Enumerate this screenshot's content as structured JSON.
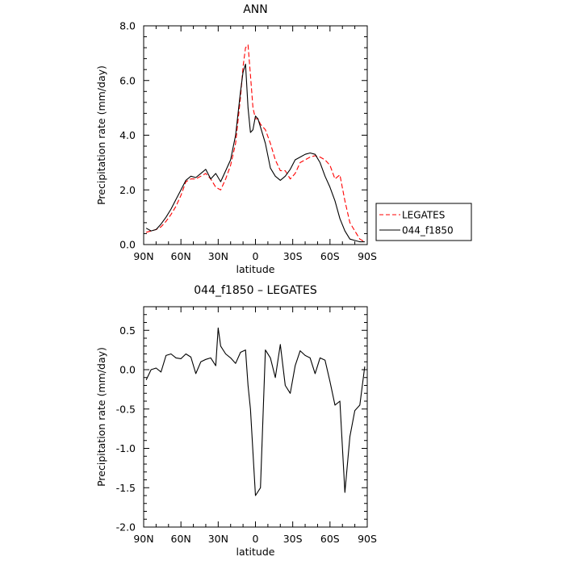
{
  "chart_data": [
    {
      "type": "line",
      "title": "ANN",
      "xlabel": "latitude",
      "ylabel": "Precipitation rate (mm/day)",
      "xlim": [
        90,
        -90
      ],
      "ylim": [
        0.0,
        8.0
      ],
      "x_ticks": [
        90,
        60,
        30,
        0,
        -30,
        -60,
        -90
      ],
      "x_tick_labels": [
        "90N",
        "60N",
        "30N",
        "0",
        "30S",
        "60S",
        "90S"
      ],
      "y_ticks": [
        0.0,
        2.0,
        4.0,
        6.0,
        8.0
      ],
      "y_tick_labels": [
        "0.0",
        "2.0",
        "4.0",
        "6.0",
        "8.0"
      ],
      "legend": "right",
      "grid": false,
      "series": [
        {
          "name": "LEGATES",
          "color": "#ff0000",
          "dash": "dashed",
          "x": [
            88,
            84,
            80,
            76,
            72,
            68,
            64,
            60,
            56,
            52,
            48,
            44,
            40,
            36,
            32,
            28,
            24,
            20,
            16,
            12,
            10,
            8,
            6,
            4,
            2,
            0,
            -2,
            -4,
            -8,
            -12,
            -16,
            -20,
            -24,
            -28,
            -32,
            -36,
            -40,
            -44,
            -48,
            -52,
            -56,
            -60,
            -64,
            -68,
            -72,
            -76,
            -80,
            -84,
            -88
          ],
          "y": [
            0.45,
            0.5,
            0.55,
            0.65,
            0.85,
            1.1,
            1.4,
            1.8,
            2.3,
            2.4,
            2.4,
            2.5,
            2.6,
            2.4,
            2.1,
            2.0,
            2.4,
            2.9,
            3.7,
            5.4,
            6.5,
            7.2,
            7.3,
            6.2,
            5.0,
            4.6,
            4.6,
            4.4,
            4.2,
            3.7,
            3.1,
            2.7,
            2.7,
            2.4,
            2.6,
            3.0,
            3.1,
            3.2,
            3.25,
            3.2,
            3.1,
            2.9,
            2.4,
            2.55,
            1.6,
            0.8,
            0.5,
            0.2,
            0.1
          ]
        },
        {
          "name": "044_f1850",
          "color": "#000000",
          "dash": "solid",
          "x": [
            88,
            84,
            80,
            76,
            72,
            68,
            64,
            60,
            56,
            52,
            48,
            44,
            40,
            36,
            32,
            28,
            24,
            20,
            16,
            12,
            10,
            8,
            6,
            4,
            2,
            0,
            -2,
            -4,
            -8,
            -12,
            -16,
            -20,
            -24,
            -28,
            -32,
            -36,
            -40,
            -44,
            -48,
            -52,
            -56,
            -60,
            -64,
            -68,
            -72,
            -76,
            -80,
            -84,
            -88
          ],
          "y": [
            0.6,
            0.5,
            0.55,
            0.75,
            1.0,
            1.3,
            1.65,
            2.0,
            2.35,
            2.5,
            2.45,
            2.6,
            2.75,
            2.4,
            2.6,
            2.3,
            2.7,
            3.1,
            4.0,
            5.6,
            6.3,
            6.6,
            5.0,
            4.1,
            4.2,
            4.7,
            4.6,
            4.3,
            3.7,
            2.8,
            2.5,
            2.35,
            2.5,
            2.75,
            3.1,
            3.2,
            3.3,
            3.35,
            3.3,
            3.0,
            2.5,
            2.1,
            1.6,
            0.95,
            0.5,
            0.2,
            0.15,
            0.1,
            0.1
          ]
        }
      ]
    },
    {
      "type": "line",
      "title": "044_f1850 – LEGATES",
      "xlabel": "latitude",
      "ylabel": "Precipitation rate (mm/day)",
      "xlim": [
        90,
        -90
      ],
      "ylim": [
        -2.0,
        0.8
      ],
      "x_ticks": [
        90,
        60,
        30,
        0,
        -30,
        -60,
        -90
      ],
      "x_tick_labels": [
        "90N",
        "60N",
        "30N",
        "0",
        "30S",
        "60S",
        "90S"
      ],
      "y_ticks": [
        -2.0,
        -1.5,
        -1.0,
        -0.5,
        0.0,
        0.5
      ],
      "y_tick_labels": [
        "-2.0",
        "-1.5",
        "-1.0",
        "-0.5",
        "0.0",
        "0.5"
      ],
      "grid": false,
      "series": [
        {
          "color": "#000000",
          "dash": "solid",
          "x": [
            88,
            84,
            80,
            76,
            72,
            68,
            64,
            60,
            56,
            52,
            48,
            44,
            40,
            36,
            32,
            30,
            28,
            24,
            20,
            16,
            12,
            8,
            6,
            4,
            0,
            -4,
            -8,
            -12,
            -16,
            -20,
            -24,
            -28,
            -32,
            -36,
            -40,
            -44,
            -48,
            -52,
            -56,
            -60,
            -64,
            -68,
            -72,
            -76,
            -80,
            -84,
            -88
          ],
          "y": [
            -0.13,
            0.0,
            0.02,
            -0.03,
            0.18,
            0.2,
            0.15,
            0.14,
            0.2,
            0.16,
            -0.05,
            0.1,
            0.13,
            0.15,
            0.05,
            0.53,
            0.3,
            0.2,
            0.15,
            0.08,
            0.22,
            0.25,
            -0.2,
            -0.5,
            -1.6,
            -1.5,
            0.25,
            0.15,
            -0.1,
            0.32,
            -0.2,
            -0.3,
            0.05,
            0.24,
            0.18,
            0.15,
            -0.05,
            0.15,
            0.12,
            -0.15,
            -0.45,
            -0.4,
            -1.56,
            -0.85,
            -0.52,
            -0.45,
            0.04
          ]
        }
      ]
    }
  ]
}
